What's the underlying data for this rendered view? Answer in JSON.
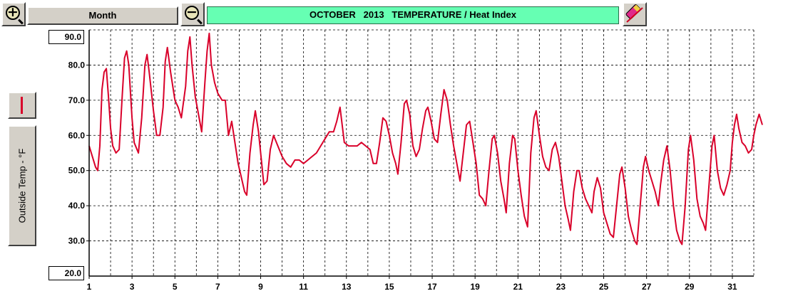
{
  "toolbar": {
    "period_label": "Month",
    "zoom_in_icon": "zoom-in-icon",
    "zoom_out_icon": "zoom-out-icon",
    "eraser_icon": "eraser-icon",
    "series_icon": "line-swatch-icon",
    "series_color": "#d9002a"
  },
  "chart_data": {
    "type": "line",
    "title": "OCTOBER   2013   TEMPERATURE / Heat Index",
    "xlabel": "",
    "ylabel": "Outside Temp - °F",
    "xlim": [
      1,
      32
    ],
    "ylim": [
      20,
      90
    ],
    "x_ticks": [
      "1",
      "3",
      "5",
      "7",
      "9",
      "11",
      "13",
      "15",
      "17",
      "19",
      "21",
      "23",
      "25",
      "27",
      "29",
      "31"
    ],
    "y_ticks": [
      "30.0",
      "40.0",
      "50.0",
      "60.0",
      "70.0",
      "80.0"
    ],
    "y_max_label": "90.0",
    "y_min_label": "20.0",
    "grid": true,
    "series": [
      {
        "color": "#d9002a",
        "points": [
          [
            1.0,
            57
          ],
          [
            1.15,
            54
          ],
          [
            1.3,
            51
          ],
          [
            1.4,
            50
          ],
          [
            1.5,
            57
          ],
          [
            1.6,
            73
          ],
          [
            1.7,
            78
          ],
          [
            1.8,
            79
          ],
          [
            1.9,
            71
          ],
          [
            2.0,
            62
          ],
          [
            2.1,
            57
          ],
          [
            2.25,
            55
          ],
          [
            2.4,
            56
          ],
          [
            2.55,
            72
          ],
          [
            2.65,
            82
          ],
          [
            2.75,
            84
          ],
          [
            2.85,
            80
          ],
          [
            3.0,
            65
          ],
          [
            3.1,
            58
          ],
          [
            3.3,
            55
          ],
          [
            3.45,
            65
          ],
          [
            3.6,
            80
          ],
          [
            3.7,
            83
          ],
          [
            3.8,
            78
          ],
          [
            4.0,
            67
          ],
          [
            4.15,
            60
          ],
          [
            4.3,
            60
          ],
          [
            4.45,
            68
          ],
          [
            4.55,
            81
          ],
          [
            4.65,
            85
          ],
          [
            4.8,
            78
          ],
          [
            5.0,
            70
          ],
          [
            5.15,
            68
          ],
          [
            5.3,
            65
          ],
          [
            5.5,
            74
          ],
          [
            5.6,
            84
          ],
          [
            5.7,
            88
          ],
          [
            5.8,
            80
          ],
          [
            5.95,
            71
          ],
          [
            6.1,
            66
          ],
          [
            6.25,
            61
          ],
          [
            6.4,
            75
          ],
          [
            6.5,
            84
          ],
          [
            6.6,
            89
          ],
          [
            6.7,
            80
          ],
          [
            6.85,
            75
          ],
          [
            7.0,
            72
          ],
          [
            7.2,
            70
          ],
          [
            7.35,
            70
          ],
          [
            7.5,
            60
          ],
          [
            7.65,
            64
          ],
          [
            7.8,
            58
          ],
          [
            7.95,
            52
          ],
          [
            8.1,
            48
          ],
          [
            8.25,
            44
          ],
          [
            8.35,
            43
          ],
          [
            8.5,
            55
          ],
          [
            8.65,
            63
          ],
          [
            8.75,
            67
          ],
          [
            8.9,
            61
          ],
          [
            9.0,
            55
          ],
          [
            9.15,
            46
          ],
          [
            9.3,
            47
          ],
          [
            9.45,
            56
          ],
          [
            9.6,
            60
          ],
          [
            9.8,
            57
          ],
          [
            10.0,
            54
          ],
          [
            10.2,
            52
          ],
          [
            10.4,
            51
          ],
          [
            10.6,
            53
          ],
          [
            10.8,
            53
          ],
          [
            11.0,
            52
          ],
          [
            11.2,
            53
          ],
          [
            11.4,
            54
          ],
          [
            11.6,
            55
          ],
          [
            11.8,
            57
          ],
          [
            12.0,
            59
          ],
          [
            12.2,
            61
          ],
          [
            12.4,
            61
          ],
          [
            12.55,
            64
          ],
          [
            12.7,
            68
          ],
          [
            12.8,
            63
          ],
          [
            12.9,
            58
          ],
          [
            13.1,
            57
          ],
          [
            13.3,
            57
          ],
          [
            13.5,
            57
          ],
          [
            13.7,
            58
          ],
          [
            13.9,
            57
          ],
          [
            14.1,
            56
          ],
          [
            14.25,
            52
          ],
          [
            14.4,
            52
          ],
          [
            14.55,
            58
          ],
          [
            14.7,
            65
          ],
          [
            14.85,
            64
          ],
          [
            15.0,
            60
          ],
          [
            15.15,
            55
          ],
          [
            15.3,
            52
          ],
          [
            15.4,
            49
          ],
          [
            15.55,
            58
          ],
          [
            15.7,
            69
          ],
          [
            15.8,
            70
          ],
          [
            15.95,
            66
          ],
          [
            16.1,
            57
          ],
          [
            16.25,
            54
          ],
          [
            16.4,
            56
          ],
          [
            16.55,
            62
          ],
          [
            16.7,
            67
          ],
          [
            16.8,
            68
          ],
          [
            16.95,
            64
          ],
          [
            17.1,
            59
          ],
          [
            17.25,
            58
          ],
          [
            17.4,
            66
          ],
          [
            17.55,
            73
          ],
          [
            17.7,
            70
          ],
          [
            17.85,
            63
          ],
          [
            18.0,
            57
          ],
          [
            18.15,
            52
          ],
          [
            18.3,
            47
          ],
          [
            18.45,
            55
          ],
          [
            18.6,
            63
          ],
          [
            18.75,
            64
          ],
          [
            18.9,
            58
          ],
          [
            19.05,
            52
          ],
          [
            19.2,
            43
          ],
          [
            19.35,
            42
          ],
          [
            19.5,
            40
          ],
          [
            19.65,
            50
          ],
          [
            19.8,
            59
          ],
          [
            19.9,
            60
          ],
          [
            20.05,
            55
          ],
          [
            20.2,
            47
          ],
          [
            20.35,
            42
          ],
          [
            20.45,
            38
          ],
          [
            20.6,
            52
          ],
          [
            20.75,
            60
          ],
          [
            20.85,
            59
          ],
          [
            21.0,
            50
          ],
          [
            21.15,
            43
          ],
          [
            21.3,
            37
          ],
          [
            21.45,
            34
          ],
          [
            21.6,
            55
          ],
          [
            21.75,
            65
          ],
          [
            21.85,
            67
          ],
          [
            22.0,
            60
          ],
          [
            22.15,
            54
          ],
          [
            22.3,
            51
          ],
          [
            22.45,
            50
          ],
          [
            22.6,
            56
          ],
          [
            22.75,
            58
          ],
          [
            22.9,
            54
          ],
          [
            23.05,
            47
          ],
          [
            23.2,
            40
          ],
          [
            23.35,
            36
          ],
          [
            23.45,
            33
          ],
          [
            23.6,
            44
          ],
          [
            23.75,
            50
          ],
          [
            23.85,
            50
          ],
          [
            24.0,
            45
          ],
          [
            24.15,
            42
          ],
          [
            24.3,
            40
          ],
          [
            24.45,
            38
          ],
          [
            24.55,
            44
          ],
          [
            24.7,
            48
          ],
          [
            24.85,
            45
          ],
          [
            25.0,
            38
          ],
          [
            25.15,
            35
          ],
          [
            25.3,
            32
          ],
          [
            25.45,
            31
          ],
          [
            25.6,
            40
          ],
          [
            25.75,
            49
          ],
          [
            25.85,
            51
          ],
          [
            26.0,
            45
          ],
          [
            26.15,
            37
          ],
          [
            26.3,
            33
          ],
          [
            26.45,
            30
          ],
          [
            26.55,
            29
          ],
          [
            26.7,
            40
          ],
          [
            26.85,
            51
          ],
          [
            26.95,
            54
          ],
          [
            27.1,
            50
          ],
          [
            27.25,
            47
          ],
          [
            27.4,
            44
          ],
          [
            27.55,
            40
          ],
          [
            27.65,
            46
          ],
          [
            27.8,
            53
          ],
          [
            27.95,
            57
          ],
          [
            28.1,
            50
          ],
          [
            28.25,
            40
          ],
          [
            28.4,
            33
          ],
          [
            28.55,
            30
          ],
          [
            28.65,
            29
          ],
          [
            28.8,
            40
          ],
          [
            28.95,
            56
          ],
          [
            29.05,
            60
          ],
          [
            29.2,
            53
          ],
          [
            29.35,
            42
          ],
          [
            29.5,
            37
          ],
          [
            29.65,
            35
          ],
          [
            29.75,
            33
          ],
          [
            29.9,
            45
          ],
          [
            30.05,
            57
          ],
          [
            30.15,
            60
          ],
          [
            30.3,
            50
          ],
          [
            30.45,
            45
          ],
          [
            30.6,
            43
          ],
          [
            30.75,
            46
          ],
          [
            30.9,
            50
          ],
          [
            31.0,
            58
          ],
          [
            31.1,
            63
          ],
          [
            31.2,
            66
          ],
          [
            31.3,
            62
          ],
          [
            31.45,
            58
          ],
          [
            31.6,
            57
          ],
          [
            31.75,
            55
          ],
          [
            31.9,
            56
          ],
          [
            32.0,
            60
          ],
          [
            32.1,
            63
          ],
          [
            32.25,
            66
          ],
          [
            32.4,
            63
          ]
        ]
      }
    ]
  }
}
